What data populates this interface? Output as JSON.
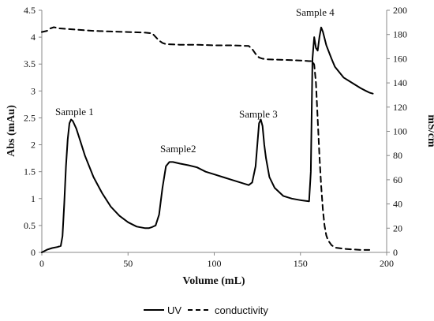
{
  "chart_data": {
    "type": "line",
    "xlabel": "Volume (mL)",
    "ylabel": "Abs (mAu)",
    "y2label": "mS/cm",
    "xlim": [
      0,
      200
    ],
    "ylim": [
      0,
      4.5
    ],
    "y2lim": [
      0,
      200
    ],
    "xticks": [
      0,
      50,
      100,
      150,
      200
    ],
    "yticks": [
      0,
      0.5,
      1,
      1.5,
      2,
      2.5,
      3,
      3.5,
      4,
      4.5
    ],
    "y2ticks": [
      0,
      20,
      40,
      60,
      80,
      100,
      120,
      140,
      160,
      180,
      200
    ],
    "grid": false,
    "legend_position": "bottom",
    "series": [
      {
        "name": "UV",
        "axis": "left",
        "style": "solid",
        "color": "#000000",
        "x": [
          0,
          3,
          6,
          9,
          11,
          12,
          13,
          14,
          15,
          16,
          17,
          18,
          20,
          22,
          25,
          30,
          35,
          40,
          45,
          50,
          55,
          60,
          62,
          64,
          66,
          68,
          70,
          72,
          74,
          76,
          80,
          85,
          90,
          95,
          100,
          105,
          110,
          115,
          120,
          122,
          124,
          125,
          126,
          127,
          128,
          129,
          130,
          132,
          135,
          140,
          145,
          150,
          155,
          156,
          157,
          158,
          159,
          160,
          161,
          162,
          163,
          165,
          168,
          170,
          175,
          180,
          185,
          188,
          190,
          192
        ],
        "y": [
          0.0,
          0.05,
          0.08,
          0.1,
          0.12,
          0.3,
          0.9,
          1.6,
          2.1,
          2.4,
          2.47,
          2.44,
          2.3,
          2.1,
          1.8,
          1.4,
          1.1,
          0.85,
          0.68,
          0.56,
          0.48,
          0.45,
          0.45,
          0.47,
          0.5,
          0.7,
          1.2,
          1.6,
          1.68,
          1.68,
          1.65,
          1.62,
          1.58,
          1.5,
          1.45,
          1.4,
          1.35,
          1.3,
          1.25,
          1.3,
          1.6,
          2.0,
          2.4,
          2.47,
          2.35,
          2.0,
          1.75,
          1.4,
          1.2,
          1.05,
          1.0,
          0.97,
          0.95,
          1.5,
          3.6,
          4.0,
          3.8,
          3.75,
          4.0,
          4.18,
          4.1,
          3.85,
          3.6,
          3.45,
          3.25,
          3.15,
          3.05,
          3.0,
          2.97,
          2.95
        ]
      },
      {
        "name": "conductivity",
        "axis": "right",
        "style": "dashed",
        "color": "#000000",
        "x": [
          0,
          3,
          5,
          7,
          10,
          20,
          30,
          40,
          50,
          60,
          64,
          66,
          68,
          70,
          72,
          80,
          90,
          100,
          110,
          120,
          122,
          124,
          126,
          128,
          130,
          140,
          150,
          155,
          157,
          158,
          159,
          160,
          161,
          162,
          163,
          164,
          165,
          166,
          167,
          168,
          170,
          175,
          180,
          185,
          190
        ],
        "y": [
          182,
          183,
          185,
          186,
          185,
          184,
          183,
          182.5,
          182,
          181.5,
          181,
          178,
          175,
          173,
          172,
          171.5,
          171.5,
          171,
          171,
          170.5,
          168,
          164,
          161,
          160,
          159.5,
          159,
          158.5,
          158,
          158,
          155,
          140,
          110,
          80,
          55,
          35,
          22,
          14,
          10,
          8,
          6,
          4,
          3,
          2.5,
          2,
          2
        ]
      }
    ],
    "annotations": [
      "Sample 1",
      "Sample2",
      "Sample 3",
      "Sample 4"
    ]
  }
}
